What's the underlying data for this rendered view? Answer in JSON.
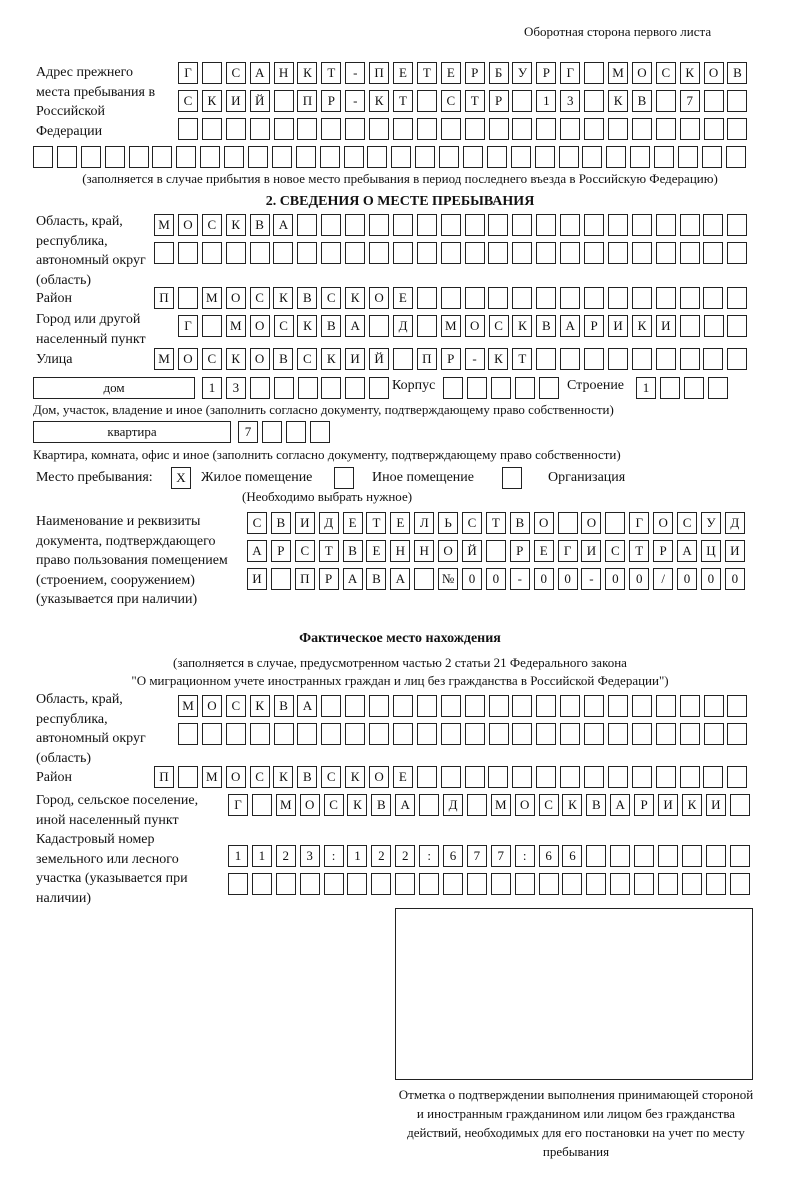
{
  "header": {
    "page_note": "Оборотная сторона первого листа"
  },
  "previous_address": {
    "label": "Адрес прежнего места пребывания в Российской Федерации",
    "rows": [
      "Г САНКТ-ПЕТЕРБУРГ МОСКОВ",
      "СКИЙ ПР-КТ СТР 13 КВ 7",
      "",
      ""
    ],
    "note": "(заполняется в случае прибытия в новое место пребывания в период последнего въезда в Российскую Федерацию)"
  },
  "section2": {
    "title": "2. СВЕДЕНИЯ О МЕСТЕ ПРЕБЫВАНИЯ",
    "region_label": "Область, край, республика, автономный округ (область)",
    "region_rows": [
      "МОСКВА",
      ""
    ],
    "district_label": "Район",
    "district": "П МОСКВСКОЕ",
    "city_label": "Город или другой населенный пункт",
    "city": "Г МОСКВА Д МОСКВАРИКИ",
    "street_label": "Улица",
    "street": "МОСКОВСКИЙ ПР-КТ",
    "house_type": "дом",
    "house_number": "13",
    "korpus_label": "Корпус",
    "korpus": "",
    "building_label": "Строение",
    "building": "1",
    "house_note": "Дом, участок, владение и иное (заполнить согласно документу, подтверждающему право собственности)",
    "apartment_type": "квартира",
    "apartment_number": "7",
    "apartment_note": "Квартира, комната, офис и иное (заполнить согласно документу, подтверждающему право собственности)",
    "stay_place_label": "Место пребывания:",
    "options": [
      {
        "label": "Жилое помещение",
        "mark": "X",
        "checked": true
      },
      {
        "label": "Иное помещение",
        "mark": "",
        "checked": false
      },
      {
        "label": "Организация",
        "mark": "",
        "checked": false
      }
    ],
    "options_note": "(Необходимо выбрать нужное)",
    "document_label": "Наименование и реквизиты документа, подтверждающего право пользования помещением (строением, сооружением) (указывается при наличии)",
    "document_rows": [
      "СВИДЕТЕЛЬСТВО О ГОСУД",
      "АРСТВЕННОЙ РЕГИСТРАЦИ",
      "И ПРАВА №00-00-00/000"
    ]
  },
  "actual": {
    "title": "Фактическое место нахождения",
    "note_line1": "(заполняется в случае, предусмотренном частью 2 статьи 21 Федерального закона",
    "note_line2": "\"О миграционном учете иностранных граждан и лиц без гражданства в Российской Федерации\")",
    "region_label": "Область, край, республика, автономный округ (область)",
    "region_rows": [
      "МОСКВА",
      ""
    ],
    "district_label": "Район",
    "district": "П МОСКВСКОЕ",
    "city_label": "Город, сельское поселение, иной населенный пункт",
    "city": "Г МОСКВА Д МОСКВАРИКИ",
    "cadastral_label": "Кадастровый номер земельного или лесного участка (указывается при наличии)",
    "cadastral_rows": [
      "1123:122:677:66",
      ""
    ]
  },
  "confirmation": {
    "caption": "Отметка о подтверждении выполнения принимающей стороной и иностранным гражданином или лицом без гражданства действий, необходимых для его постановки на учет по месту пребывания"
  }
}
